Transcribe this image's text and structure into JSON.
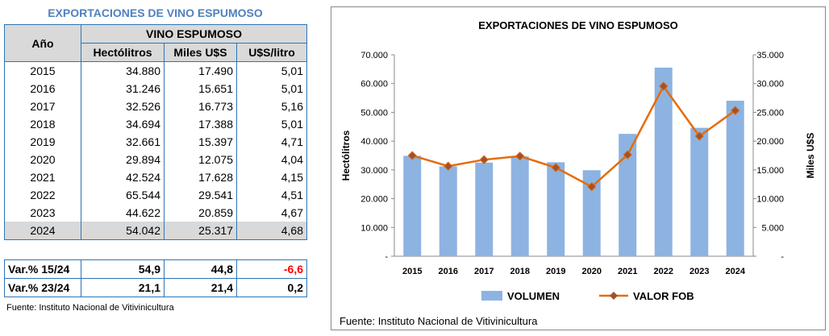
{
  "table": {
    "title": "EXPORTACIONES DE VINO ESPUMOSO",
    "col_year": "Año",
    "group_header": "VINO ESPUMOSO",
    "cols": [
      "Hectólitros",
      "Miles U$S",
      "U$S/litro"
    ],
    "rows": [
      [
        "2015",
        "34.880",
        "17.490",
        "5,01"
      ],
      [
        "2016",
        "31.246",
        "15.651",
        "5,01"
      ],
      [
        "2017",
        "32.526",
        "16.773",
        "5,16"
      ],
      [
        "2018",
        "34.694",
        "17.388",
        "5,01"
      ],
      [
        "2019",
        "32.661",
        "15.397",
        "4,71"
      ],
      [
        "2020",
        "29.894",
        "12.075",
        "4,04"
      ],
      [
        "2021",
        "42.524",
        "17.628",
        "4,15"
      ],
      [
        "2022",
        "65.544",
        "29.541",
        "4,51"
      ],
      [
        "2023",
        "44.622",
        "20.859",
        "4,67"
      ],
      [
        "2024",
        "54.042",
        "25.317",
        "4,68"
      ]
    ],
    "var_rows": [
      [
        "Var.% 15/24",
        "54,9",
        "44,8",
        "-6,6"
      ],
      [
        "Var.% 23/24",
        "21,1",
        "21,4",
        "0,2"
      ]
    ],
    "source": "Fuente:  Instituto  Nacional  de  Vitivinicultura"
  },
  "chart_data": {
    "type": "bar",
    "title": "EXPORTACIONES DE VINO ESPUMOSO",
    "categories": [
      "2015",
      "2016",
      "2017",
      "2018",
      "2019",
      "2020",
      "2021",
      "2022",
      "2023",
      "2024"
    ],
    "series": [
      {
        "name": "VOLUMEN",
        "type": "bar",
        "axis": "left",
        "color": "#8DB3E2",
        "values": [
          34880,
          31246,
          32526,
          34694,
          32661,
          29894,
          42524,
          65544,
          44622,
          54042
        ]
      },
      {
        "name": "VALOR FOB",
        "type": "line",
        "axis": "right",
        "color": "#E46C0A",
        "values": [
          17490,
          15651,
          16773,
          17388,
          15397,
          12075,
          17628,
          29541,
          20859,
          25317
        ]
      }
    ],
    "ylabel": "Hectólitros",
    "y2label": "Miles U$S",
    "ylim": [
      0,
      70000
    ],
    "y2lim": [
      0,
      35000
    ],
    "yticks": [
      "-",
      "10.000",
      "20.000",
      "30.000",
      "40.000",
      "50.000",
      "60.000",
      "70.000"
    ],
    "y2ticks": [
      "-",
      "5.000",
      "10.000",
      "15.000",
      "20.000",
      "25.000",
      "30.000",
      "35.000"
    ],
    "grid": false,
    "legend": "bottom",
    "source": "Fuente: Instituto Nacional de Vitivinicultura"
  }
}
